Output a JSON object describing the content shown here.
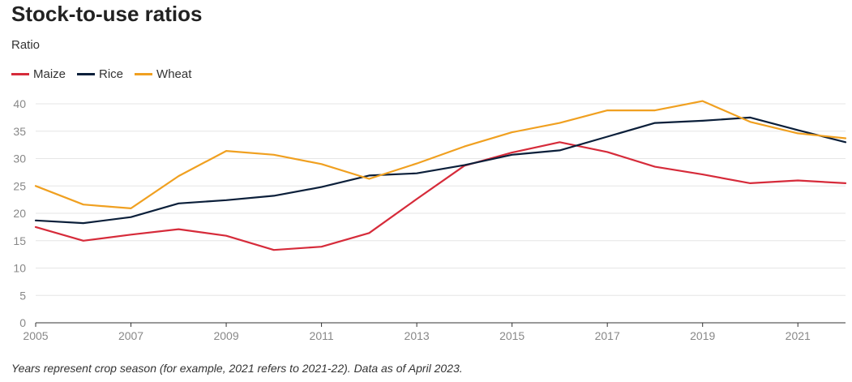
{
  "chart_data": {
    "type": "line",
    "title": "Stock-to-use ratios",
    "ylabel": "Ratio",
    "xlabel": "",
    "x": [
      2005,
      2006,
      2007,
      2008,
      2009,
      2010,
      2011,
      2012,
      2013,
      2014,
      2015,
      2016,
      2017,
      2018,
      2019,
      2020,
      2021,
      2022
    ],
    "x_ticks": [
      2005,
      2007,
      2009,
      2011,
      2013,
      2015,
      2017,
      2019,
      2021
    ],
    "y_ticks": [
      0,
      5,
      10,
      15,
      20,
      25,
      30,
      35,
      40
    ],
    "xlim": [
      2005,
      2022
    ],
    "ylim": [
      0,
      40
    ],
    "grid": "horizontal",
    "legend": "top-left",
    "series": [
      {
        "name": "Maize",
        "color": "#d62b3a",
        "values": [
          17.5,
          15.0,
          16.1,
          17.1,
          15.9,
          13.3,
          13.9,
          16.4,
          22.6,
          28.7,
          31.1,
          33.0,
          31.2,
          28.5,
          27.1,
          25.5,
          26.0,
          25.5
        ]
      },
      {
        "name": "Rice",
        "color": "#0b1f3a",
        "values": [
          18.7,
          18.2,
          19.3,
          21.8,
          22.4,
          23.2,
          24.8,
          26.9,
          27.3,
          28.8,
          30.7,
          31.5,
          34.0,
          36.5,
          36.9,
          37.5,
          35.2,
          33.0
        ]
      },
      {
        "name": "Wheat",
        "color": "#f0a020",
        "values": [
          25.0,
          21.6,
          20.9,
          26.8,
          31.4,
          30.7,
          29.0,
          26.3,
          29.1,
          32.2,
          34.8,
          36.5,
          38.8,
          38.8,
          40.5,
          36.7,
          34.6,
          33.7
        ]
      }
    ],
    "footnote": "Years represent crop season (for example, 2021 refers to 2021-22). Data as of April 2023."
  }
}
